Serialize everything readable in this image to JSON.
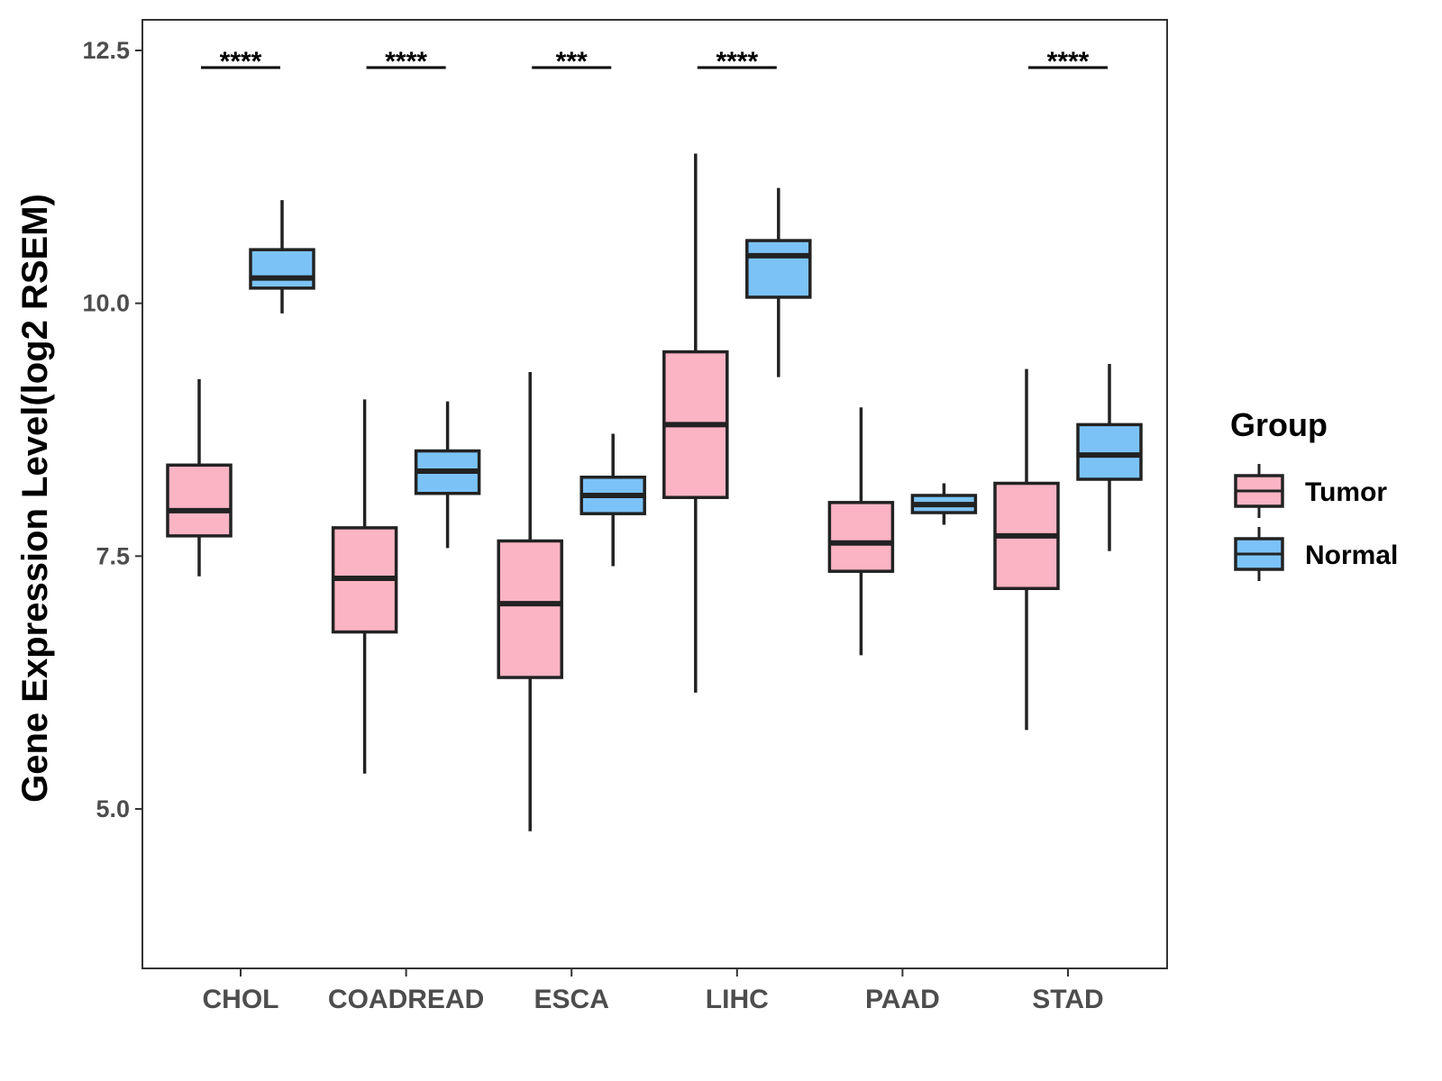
{
  "chart_data": {
    "type": "boxplot",
    "ylabel": "Gene Expression Level(log2 RSEM)",
    "ylim": [
      3.5,
      12.8
    ],
    "yticks": [
      "5.0",
      "7.5",
      "10.0",
      "12.5"
    ],
    "categories": [
      "CHOL",
      "COADREAD",
      "ESCA",
      "LIHC",
      "PAAD",
      "STAD"
    ],
    "legend": {
      "title": "Group",
      "position": "right",
      "entries": [
        {
          "name": "Tumor",
          "color": "#FBB4C4"
        },
        {
          "name": "Normal",
          "color": "#7BC3F7"
        }
      ]
    },
    "series": [
      {
        "name": "Tumor",
        "color": "#FBB4C4",
        "boxes": [
          {
            "min": 7.3,
            "q1": 7.7,
            "median": 7.95,
            "q3": 8.4,
            "max": 9.25
          },
          {
            "min": 5.35,
            "q1": 6.75,
            "median": 7.28,
            "q3": 7.78,
            "max": 9.05
          },
          {
            "min": 4.78,
            "q1": 6.3,
            "median": 7.03,
            "q3": 7.65,
            "max": 9.32
          },
          {
            "min": 6.15,
            "q1": 8.08,
            "median": 8.8,
            "q3": 9.52,
            "max": 11.48
          },
          {
            "min": 6.52,
            "q1": 7.35,
            "median": 7.63,
            "q3": 8.03,
            "max": 8.97
          },
          {
            "min": 5.78,
            "q1": 7.18,
            "median": 7.7,
            "q3": 8.22,
            "max": 9.35
          }
        ]
      },
      {
        "name": "Normal",
        "color": "#7BC3F7",
        "boxes": [
          {
            "min": 9.9,
            "q1": 10.15,
            "median": 10.25,
            "q3": 10.53,
            "max": 11.02
          },
          {
            "min": 7.58,
            "q1": 8.12,
            "median": 8.34,
            "q3": 8.54,
            "max": 9.03
          },
          {
            "min": 7.4,
            "q1": 7.92,
            "median": 8.1,
            "q3": 8.28,
            "max": 8.71
          },
          {
            "min": 9.27,
            "q1": 10.06,
            "median": 10.47,
            "q3": 10.62,
            "max": 11.14
          },
          {
            "min": 7.81,
            "q1": 7.93,
            "median": 8.01,
            "q3": 8.1,
            "max": 8.22
          },
          {
            "min": 7.55,
            "q1": 8.26,
            "median": 8.5,
            "q3": 8.8,
            "max": 9.4
          }
        ]
      }
    ],
    "significance": [
      "****",
      "****",
      "***",
      "****",
      "",
      "****"
    ]
  }
}
